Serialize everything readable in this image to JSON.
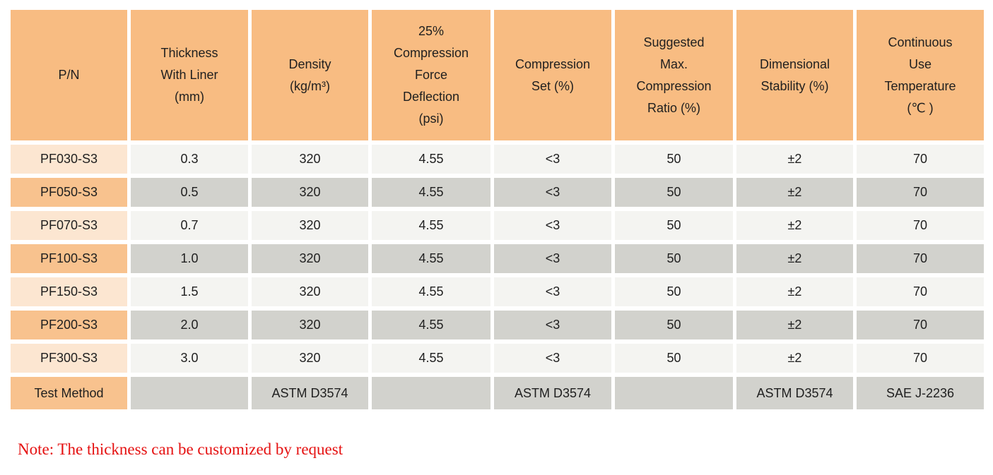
{
  "colors": {
    "header_bg": "#F8BC82",
    "pn_cell_light": "#FCE6D1",
    "pn_cell_dark": "#F8C28E",
    "data_cell_light": "#F4F4F1",
    "data_cell_dark": "#D2D2CD",
    "text": "#1F1F1F",
    "note_red": "#E51111"
  },
  "table": {
    "headers": [
      {
        "id": "pn",
        "label": "P/N"
      },
      {
        "id": "thickness-with-liner",
        "label": "Thickness\nWith Liner\n(mm)"
      },
      {
        "id": "density",
        "label": "Density\n(kg/m³)"
      },
      {
        "id": "compression-force-deflection",
        "label": "25%\nCompression\nForce\nDeflection\n(psi)"
      },
      {
        "id": "compression-set",
        "label": "Compression\nSet (%)"
      },
      {
        "id": "suggested-max-compression-ratio",
        "label": "Suggested\nMax.\nCompression\nRatio (%)"
      },
      {
        "id": "dimensional-stability",
        "label": "Dimensional\nStability (%)"
      },
      {
        "id": "continuous-use-temperature",
        "label": "Continuous\nUse\nTemperature\n(℃ )"
      }
    ],
    "rows": [
      {
        "pn": "PF030-S3",
        "values": [
          "0.3",
          "320",
          "4.55",
          "<3",
          "50",
          "±2",
          "70"
        ]
      },
      {
        "pn": "PF050-S3",
        "values": [
          "0.5",
          "320",
          "4.55",
          "<3",
          "50",
          "±2",
          "70"
        ]
      },
      {
        "pn": "PF070-S3",
        "values": [
          "0.7",
          "320",
          "4.55",
          "<3",
          "50",
          "±2",
          "70"
        ]
      },
      {
        "pn": "PF100-S3",
        "values": [
          "1.0",
          "320",
          "4.55",
          "<3",
          "50",
          "±2",
          "70"
        ]
      },
      {
        "pn": "PF150-S3",
        "values": [
          "1.5",
          "320",
          "4.55",
          "<3",
          "50",
          "±2",
          "70"
        ]
      },
      {
        "pn": "PF200-S3",
        "values": [
          "2.0",
          "320",
          "4.55",
          "<3",
          "50",
          "±2",
          "70"
        ]
      },
      {
        "pn": "PF300-S3",
        "values": [
          "3.0",
          "320",
          "4.55",
          "<3",
          "50",
          "±2",
          "70"
        ]
      },
      {
        "pn": "Test Method",
        "values": [
          "",
          "ASTM D3574",
          "",
          "ASTM D3574",
          "",
          "ASTM D3574",
          "SAE J-2236"
        ]
      }
    ]
  },
  "note": "Note: The thickness can be customized by request"
}
